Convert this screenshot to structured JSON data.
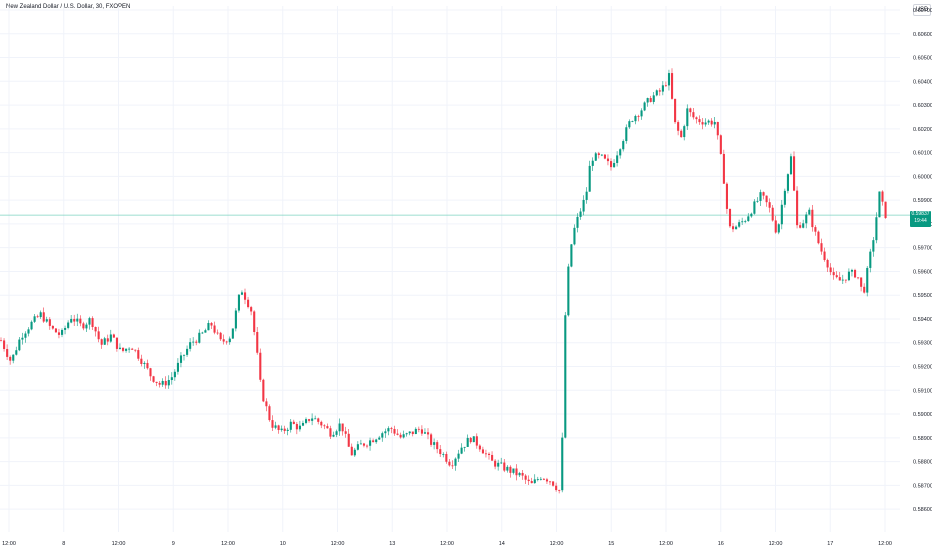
{
  "title": "New Zealand Dollar / U.S. Dollar, 30, FXOPEN",
  "currency": "USD",
  "last_price_label": "0.59837",
  "countdown": "19:44",
  "colors": {
    "up": "#089981",
    "down": "#f23645",
    "grid": "#f0f3fa",
    "price_line": "#7dd3c0"
  },
  "chart_data": {
    "type": "candlestick",
    "title": "New Zealand Dollar / U.S. Dollar, 30, FXOPEN",
    "xlabel": "",
    "ylabel": "",
    "ylim": [
      0.5855,
      0.607
    ],
    "y_ticks": [
      "0.60700",
      "0.60600",
      "0.60500",
      "0.60400",
      "0.60300",
      "0.60200",
      "0.60100",
      "0.60000",
      "0.59900",
      "0.59800",
      "0.59700",
      "0.59600",
      "0.59500",
      "0.59400",
      "0.59300",
      "0.59200",
      "0.59100",
      "0.59000",
      "0.58900",
      "0.58800",
      "0.58700",
      "0.58600"
    ],
    "x_ticks": [
      "12:00",
      "8",
      "12:00",
      "9",
      "12:00",
      "10",
      "12:00",
      "13",
      "12:00",
      "14",
      "12:00",
      "15",
      "12:00",
      "16",
      "12:00",
      "17",
      "12:00"
    ],
    "last_price": 0.59837,
    "close_path": [
      [
        0,
        0.5931
      ],
      [
        10,
        0.5922
      ],
      [
        20,
        0.5933
      ],
      [
        30,
        0.5938
      ],
      [
        40,
        0.5942
      ],
      [
        50,
        0.5936
      ],
      [
        60,
        0.5933
      ],
      [
        70,
        0.5941
      ],
      [
        80,
        0.5937
      ],
      [
        90,
        0.594
      ],
      [
        100,
        0.5929
      ],
      [
        110,
        0.5933
      ],
      [
        120,
        0.5926
      ],
      [
        130,
        0.5929
      ],
      [
        140,
        0.5923
      ],
      [
        150,
        0.5916
      ],
      [
        160,
        0.5912
      ],
      [
        170,
        0.5915
      ],
      [
        180,
        0.5923
      ],
      [
        190,
        0.593
      ],
      [
        200,
        0.5933
      ],
      [
        210,
        0.5938
      ],
      [
        220,
        0.593
      ],
      [
        230,
        0.5933
      ],
      [
        240,
        0.5953
      ],
      [
        250,
        0.5944
      ],
      [
        255,
        0.5929
      ],
      [
        260,
        0.591
      ],
      [
        270,
        0.5896
      ],
      [
        280,
        0.5892
      ],
      [
        290,
        0.5896
      ],
      [
        300,
        0.5894
      ],
      [
        310,
        0.5899
      ],
      [
        320,
        0.5896
      ],
      [
        330,
        0.5892
      ],
      [
        340,
        0.5896
      ],
      [
        350,
        0.5883
      ],
      [
        360,
        0.5887
      ],
      [
        370,
        0.5889
      ],
      [
        380,
        0.5892
      ],
      [
        390,
        0.5894
      ],
      [
        400,
        0.589
      ],
      [
        410,
        0.5892
      ],
      [
        420,
        0.5894
      ],
      [
        430,
        0.5888
      ],
      [
        440,
        0.5884
      ],
      [
        450,
        0.5879
      ],
      [
        460,
        0.5886
      ],
      [
        470,
        0.589
      ],
      [
        480,
        0.5886
      ],
      [
        490,
        0.588
      ],
      [
        500,
        0.5878
      ],
      [
        510,
        0.5876
      ],
      [
        520,
        0.5874
      ],
      [
        530,
        0.587
      ],
      [
        540,
        0.5874
      ],
      [
        550,
        0.5872
      ],
      [
        560,
        0.5867
      ],
      [
        564,
        0.594
      ],
      [
        568,
        0.5965
      ],
      [
        572,
        0.5976
      ],
      [
        578,
        0.5984
      ],
      [
        585,
        0.5992
      ],
      [
        590,
        0.6008
      ],
      [
        600,
        0.6008
      ],
      [
        610,
        0.6004
      ],
      [
        620,
        0.6014
      ],
      [
        630,
        0.6024
      ],
      [
        640,
        0.6028
      ],
      [
        650,
        0.6033
      ],
      [
        660,
        0.6036
      ],
      [
        668,
        0.6042
      ],
      [
        674,
        0.6022
      ],
      [
        680,
        0.6016
      ],
      [
        686,
        0.6028
      ],
      [
        694,
        0.6024
      ],
      [
        704,
        0.6023
      ],
      [
        714,
        0.6023
      ],
      [
        722,
        0.6002
      ],
      [
        728,
        0.5978
      ],
      [
        736,
        0.5979
      ],
      [
        744,
        0.5982
      ],
      [
        752,
        0.5987
      ],
      [
        760,
        0.5992
      ],
      [
        768,
        0.5987
      ],
      [
        776,
        0.5976
      ],
      [
        784,
        0.5996
      ],
      [
        790,
        0.6008
      ],
      [
        796,
        0.5979
      ],
      [
        802,
        0.5981
      ],
      [
        808,
        0.5985
      ],
      [
        814,
        0.5976
      ],
      [
        820,
        0.5969
      ],
      [
        826,
        0.5964
      ],
      [
        832,
        0.5957
      ],
      [
        840,
        0.5956
      ],
      [
        848,
        0.5959
      ],
      [
        856,
        0.5959
      ],
      [
        862,
        0.595
      ],
      [
        868,
        0.5964
      ],
      [
        874,
        0.5978
      ],
      [
        878,
        0.5993
      ],
      [
        882,
        0.5987
      ],
      [
        886,
        0.5982
      ]
    ]
  }
}
